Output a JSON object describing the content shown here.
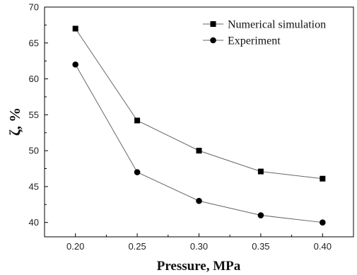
{
  "chart_data": {
    "type": "line",
    "xlabel": "Pressure, MPa",
    "ylabel": "ζ, %",
    "xlim": [
      0.175,
      0.425
    ],
    "ylim": [
      38,
      70
    ],
    "x": [
      0.2,
      0.25,
      0.3,
      0.35,
      0.4
    ],
    "xticks": [
      0.2,
      0.25,
      0.3,
      0.35,
      0.4
    ],
    "xtick_labels": [
      "0.20",
      "0.25",
      "0.30",
      "0.35",
      "0.40"
    ],
    "yticks": [
      40,
      45,
      50,
      55,
      60,
      65,
      70
    ],
    "ytick_labels": [
      "40",
      "45",
      "50",
      "55",
      "60",
      "65",
      "70"
    ],
    "grid": false,
    "legend_position": "top-right",
    "series": [
      {
        "name": "Numerical simulation",
        "marker": "square",
        "values": [
          67.0,
          54.2,
          50.0,
          47.1,
          46.1
        ]
      },
      {
        "name": "Experiment",
        "marker": "circle",
        "values": [
          62.0,
          47.0,
          43.0,
          41.0,
          40.0
        ]
      }
    ],
    "colors": {
      "line": "#666666",
      "marker": "#000000",
      "axis": "#000000"
    }
  }
}
